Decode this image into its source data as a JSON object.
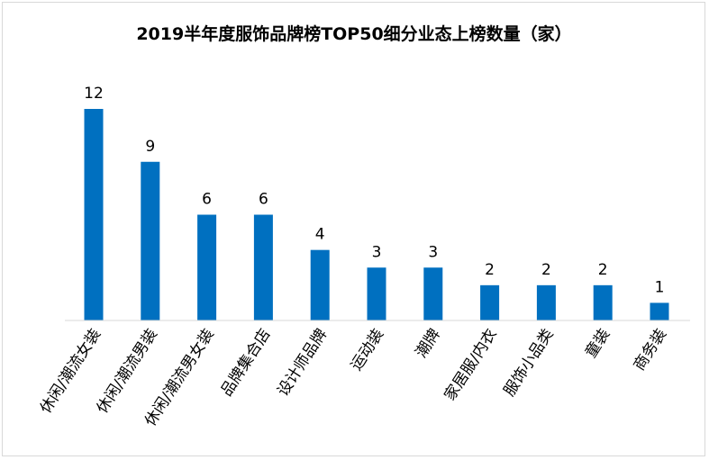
{
  "chart_data": {
    "type": "bar",
    "title": "2019半年度服饰品牌榜TOP50细分业态上榜数量（家）",
    "categories": [
      "休闲/潮流女装",
      "休闲/潮流男装",
      "休闲/潮流男女装",
      "品牌集合店",
      "设计师品牌",
      "运动装",
      "潮牌",
      "家居服/内衣",
      "服饰小品类",
      "童装",
      "商务装"
    ],
    "values": [
      12,
      9,
      6,
      6,
      4,
      3,
      3,
      2,
      2,
      2,
      1
    ],
    "xlabel": "",
    "ylabel": "",
    "ylim": [
      0,
      12
    ],
    "grid": false,
    "legend": "none",
    "data_labels": true,
    "bar_color": "#0070c0"
  }
}
